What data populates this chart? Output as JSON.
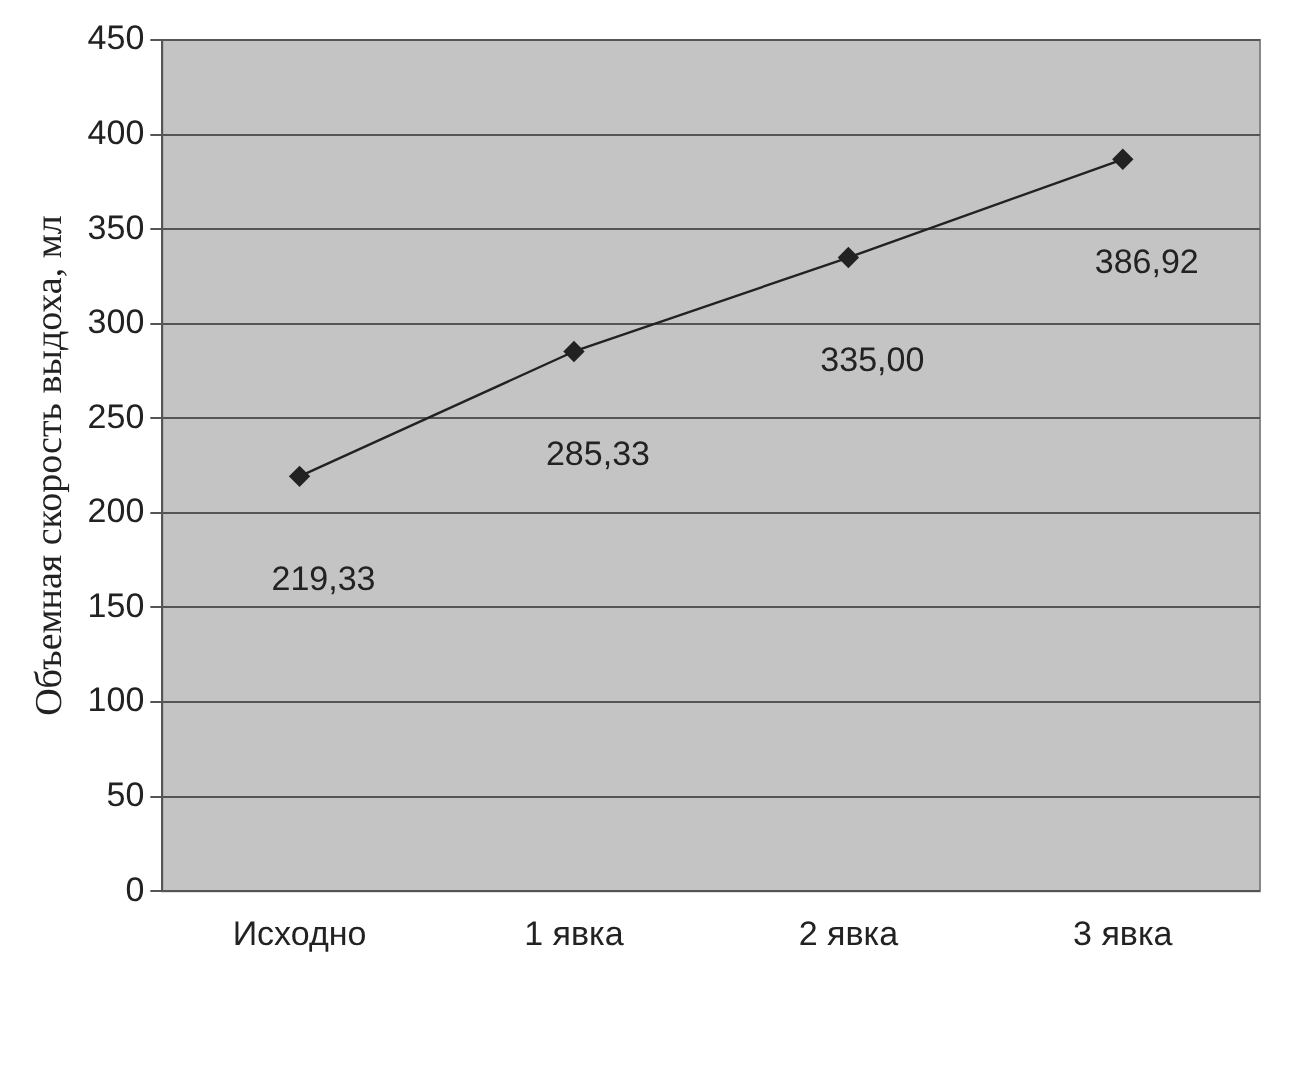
{
  "chart_data": {
    "type": "line",
    "ylabel": "Объемная скорость выдоха, мл",
    "categories": [
      "Исходно",
      "1 явка",
      "2 явка",
      "3 явка"
    ],
    "series": [
      {
        "color": "#222222",
        "values": [
          219.33,
          285.33,
          335.0,
          386.92
        ],
        "value_labels": [
          "219,33",
          "285,33",
          "335,00",
          "386,92"
        ]
      }
    ],
    "ylim": [
      0,
      450
    ],
    "yticks": [
      0,
      50,
      100,
      150,
      200,
      250,
      300,
      350,
      400,
      450
    ],
    "grid": "y",
    "legend": false,
    "marker": "diamond",
    "line_style": "solid"
  }
}
